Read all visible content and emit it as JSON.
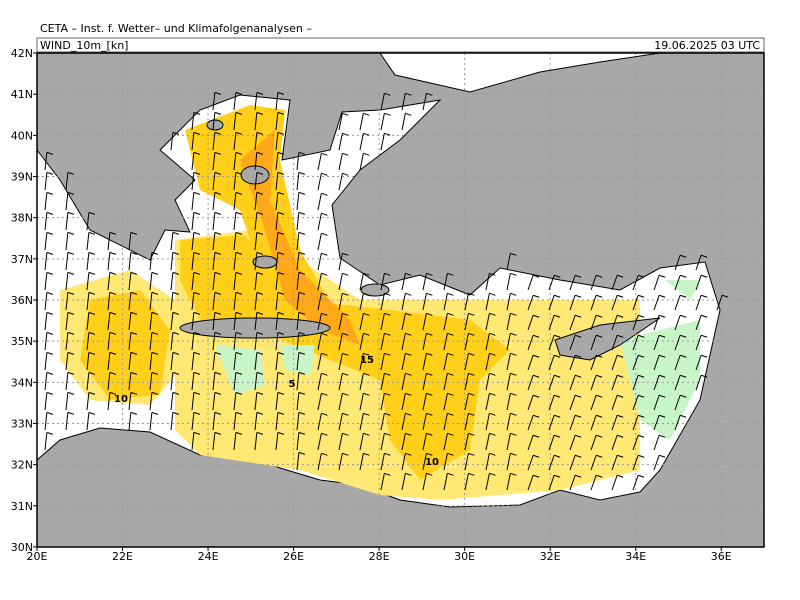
{
  "header": {
    "title": "CETA – Inst. f. Wetter– und Klimafolgenanalysen –",
    "field": "WIND_10m_[kn]",
    "valid_time": "19.06.2025 03 UTC"
  },
  "axes": {
    "lat_labels": [
      "42N",
      "41N",
      "40N",
      "39N",
      "38N",
      "37N",
      "36N",
      "35N",
      "34N",
      "33N",
      "32N",
      "31N",
      "30N"
    ],
    "lon_labels": [
      "20E",
      "22E",
      "24E",
      "26E",
      "28E",
      "30E",
      "32E",
      "34E",
      "36E"
    ]
  },
  "contour_labels": [
    "15",
    "5",
    "10",
    "10"
  ]
}
